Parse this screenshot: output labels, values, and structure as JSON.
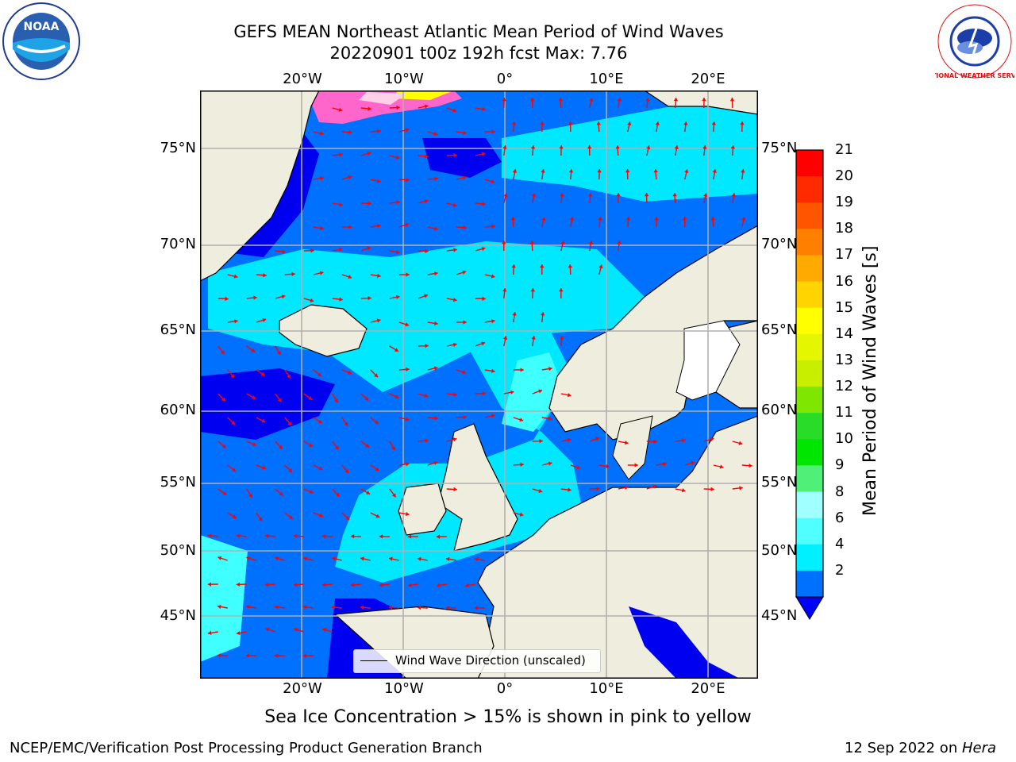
{
  "header": {
    "title_line1": "GEFS MEAN Northeast Atlantic Mean Period of Wind Waves",
    "title_line2": "20220901 t00z 192h fcst   Max: 7.76"
  },
  "logos": {
    "left": "NOAA",
    "right": "NATIONAL WEATHER SERVICE"
  },
  "map": {
    "lon_ticks_top": [
      "20°W",
      "10°W",
      "0°",
      "10°E",
      "20°E"
    ],
    "lon_ticks_bottom": [
      "20°W",
      "10°W",
      "0°",
      "10°E",
      "20°E"
    ],
    "lat_ticks_left": [
      "75°N",
      "70°N",
      "65°N",
      "60°N",
      "55°N",
      "50°N",
      "45°N"
    ],
    "lat_ticks_right": [
      "75°N",
      "70°N",
      "65°N",
      "60°N",
      "55°N",
      "50°N",
      "45°N"
    ],
    "legend_label": "Wind Wave Direction (unscaled)",
    "colors": {
      "ocean_deep": "#0000f0",
      "ocean_blue": "#0070ff",
      "ocean_cyan": "#00e8ff",
      "ocean_light": "#40ffff",
      "land": "#efedde",
      "arrow": "#ff0000",
      "grid": "#b0b0b0"
    }
  },
  "colorbar": {
    "label": "Mean Period of Wind Waves [s]",
    "ticks": [
      "21",
      "20",
      "19",
      "18",
      "17",
      "16",
      "15",
      "14",
      "13",
      "12",
      "11",
      "10",
      "9",
      "8",
      "6",
      "4",
      "2"
    ],
    "colors": [
      "#ff0000",
      "#ff2a00",
      "#ff5500",
      "#ff8000",
      "#ffaa00",
      "#ffd400",
      "#ffff00",
      "#e4f600",
      "#c8ee00",
      "#7ee600",
      "#28dc28",
      "#00e600",
      "#50f078",
      "#a0ffff",
      "#50ffff",
      "#00f0ff",
      "#0070ff"
    ],
    "extend_color": "#0000ff"
  },
  "caption": "Sea Ice Concentration > 15% is shown in pink to yellow",
  "footer": {
    "left": "NCEP/EMC/Verification Post Processing Product Generation Branch",
    "right_prefix": "12 Sep 2022 on ",
    "right_italic": "Hera"
  }
}
